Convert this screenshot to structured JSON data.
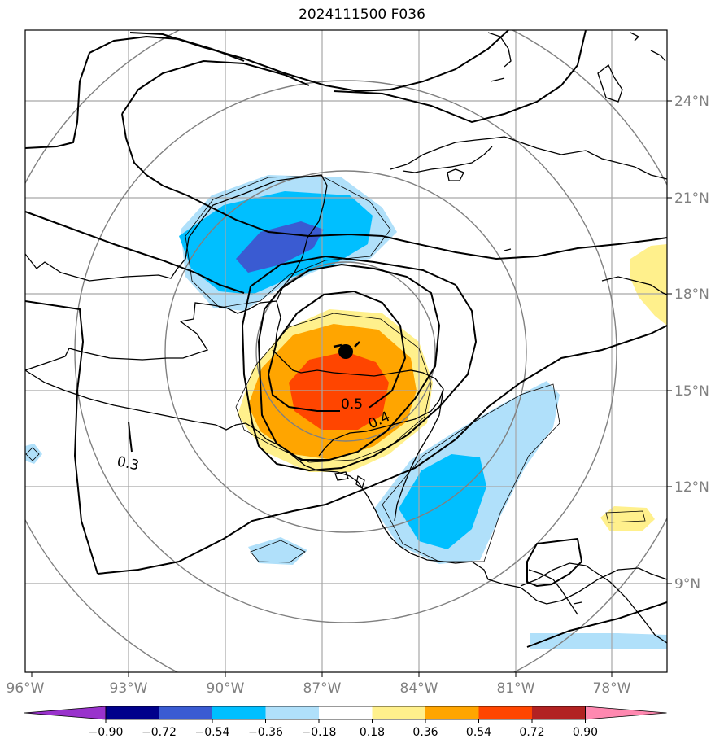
{
  "title": "2024111500 F036",
  "lon_labels": [
    "96°W",
    "93°W",
    "90°W",
    "87°W",
    "84°W",
    "81°W",
    "78°W"
  ],
  "lat_labels": [
    "24°N",
    "21°N",
    "18°N",
    "15°N",
    "12°N",
    "9°N"
  ],
  "colorbar": {
    "ticks": [
      "−0.90",
      "−0.72",
      "−0.54",
      "−0.36",
      "−0.18",
      "0.18",
      "0.36",
      "0.54",
      "0.72",
      "0.90"
    ],
    "colors": [
      "#9932cc",
      "#00008b",
      "#3a5bd2",
      "#00bfff",
      "#b0e0fa",
      "#ffffff",
      "#fff08c",
      "#ffa500",
      "#ff4500",
      "#b22222",
      "#ff88b0"
    ]
  },
  "contour_labels": {
    "c05": "0.5",
    "c04": "0.4",
    "c03": "0.3"
  },
  "storm_center": {
    "lon": "86.3°W",
    "lat": "16.2°N"
  }
}
